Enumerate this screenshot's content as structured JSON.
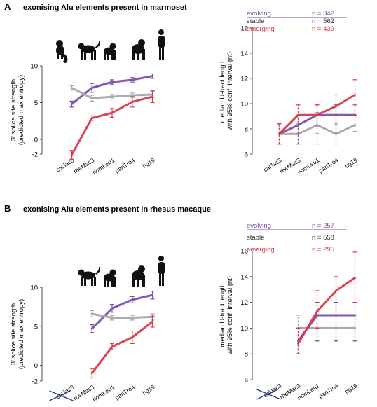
{
  "colors": {
    "evolving": "#7b4fa6",
    "stable": "#a6a6a6",
    "emerging": "#d83a4a",
    "axis": "#222222",
    "strike": "#2a3a8c"
  },
  "panels": [
    {
      "letter": "A",
      "title": "exonising Alu elements present in marmoset",
      "icons": [
        "marmoset-icon",
        "macaque-icon",
        "gibbon-icon",
        "chimpanzee-icon",
        "human-icon"
      ]
    },
    {
      "letter": "B",
      "title": "exonising Alu elements present in rhesus macaque",
      "icons": [
        "macaque-icon",
        "gibbon-icon",
        "chimpanzee-icon",
        "human-icon"
      ]
    }
  ],
  "chart_data": [
    {
      "type": "line",
      "panel": "A-left",
      "categories": [
        "calJac3",
        "rheMac3",
        "nomLeu1",
        "panTro4",
        "hg19"
      ],
      "ylabel": "3' splice site strength\n(predicted max entropy)",
      "ylim": [
        -2,
        10
      ],
      "yticks": [
        -2,
        0,
        5,
        10
      ],
      "series": [
        {
          "key": "evolving",
          "values": [
            4.8,
            7.0,
            7.8,
            8.1,
            8.6
          ],
          "err": [
            0.4,
            0.6,
            0.3,
            0.3,
            0.3
          ]
        },
        {
          "key": "stable",
          "values": [
            7.0,
            5.6,
            5.8,
            6.0,
            6.1
          ],
          "err": [
            0.3,
            0.4,
            0.3,
            0.3,
            0.4
          ]
        },
        {
          "key": "emerging",
          "values": [
            -2.1,
            2.9,
            3.6,
            5.1,
            5.8
          ],
          "err": [
            0.6,
            0.3,
            0.6,
            0.7,
            0.8
          ]
        }
      ],
      "strike_first_tick": false
    },
    {
      "type": "line",
      "panel": "A-right",
      "categories": [
        "calJac3",
        "rheMac3",
        "nomLeu1",
        "panTro4",
        "hg19"
      ],
      "ylabel": "median U-tract length\nwith 95% conf. interval (nt)",
      "ylim": [
        6,
        16
      ],
      "yticks": [
        6,
        8,
        10,
        12,
        14,
        16
      ],
      "legend": [
        {
          "key": "evolving",
          "label": "evolving",
          "n": "n = 342"
        },
        {
          "key": "stable",
          "label": "stable",
          "n": "n = 562"
        },
        {
          "key": "emerging",
          "label": "emerging",
          "n": "n = 439"
        }
      ],
      "series": [
        {
          "key": "stable",
          "values": [
            7.6,
            7.6,
            8.3,
            7.6,
            8.3
          ],
          "err_lo": [
            0.8,
            0.8,
            1.5,
            0.8,
            0.5
          ],
          "err_hi": [
            0.8,
            0.8,
            1.0,
            0.8,
            0.8
          ]
        },
        {
          "key": "evolving",
          "values": [
            7.6,
            8.3,
            9.1,
            9.1,
            9.1
          ],
          "err_lo": [
            0.8,
            1.5,
            0.8,
            1.5,
            0.8
          ],
          "err_hi": [
            0.8,
            0.8,
            0.8,
            0.8,
            0.8
          ]
        },
        {
          "key": "emerging",
          "values": [
            7.6,
            9.1,
            9.1,
            9.8,
            10.7
          ],
          "err_lo": [
            0.8,
            1.5,
            1.5,
            1.5,
            1.6
          ],
          "err_hi": [
            0.8,
            0.8,
            0.8,
            0.9,
            1.2
          ]
        }
      ],
      "strike_first_tick": false
    },
    {
      "type": "line",
      "panel": "B-left",
      "categories": [
        "calJac3",
        "rheMac3",
        "nomLeu1",
        "panTro4",
        "hg19"
      ],
      "ylabel": "3' splice site strength\n(predicted max entropy)",
      "ylim": [
        -2,
        10
      ],
      "yticks": [
        -2,
        0,
        5,
        10
      ],
      "series": [
        {
          "key": "evolving",
          "values": [
            null,
            4.7,
            7.3,
            8.4,
            9.0
          ],
          "err": [
            null,
            0.5,
            0.5,
            0.4,
            0.5
          ]
        },
        {
          "key": "stable",
          "values": [
            null,
            6.6,
            6.1,
            6.1,
            6.2
          ],
          "err": [
            null,
            0.4,
            0.3,
            0.3,
            0.4
          ]
        },
        {
          "key": "emerging",
          "values": [
            null,
            -1.0,
            2.4,
            3.6,
            5.6
          ],
          "err": [
            null,
            0.6,
            0.4,
            0.8,
            0.7
          ]
        }
      ],
      "strike_first_tick": true
    },
    {
      "type": "line",
      "panel": "B-right",
      "categories": [
        "calJac3",
        "rheMac3",
        "nomLeu1",
        "panTro4",
        "hg19"
      ],
      "ylabel": "median U-tract length\nwith 95% conf. interval (nt)",
      "ylim": [
        6,
        16
      ],
      "yticks": [
        6,
        8,
        10,
        12,
        14,
        16
      ],
      "legend": [
        {
          "key": "evolving",
          "label": "evolving",
          "n": "n = 257"
        },
        {
          "key": "stable",
          "label": "stable",
          "n": "n = 558"
        },
        {
          "key": "emerging",
          "label": "emerging",
          "n": "n = 295"
        }
      ],
      "series": [
        {
          "key": "stable",
          "values": [
            null,
            10.0,
            10.0,
            10.0,
            10.0
          ],
          "err_lo": [
            null,
            2.0,
            1.0,
            1.0,
            1.0
          ],
          "err_hi": [
            null,
            1.0,
            1.0,
            1.0,
            1.0
          ]
        },
        {
          "key": "evolving",
          "values": [
            null,
            9.0,
            11.0,
            11.0,
            11.0
          ],
          "err_lo": [
            null,
            1.0,
            2.0,
            2.0,
            2.0
          ],
          "err_hi": [
            null,
            1.0,
            1.0,
            1.0,
            1.0
          ]
        },
        {
          "key": "emerging",
          "values": [
            null,
            8.8,
            11.3,
            12.9,
            13.9
          ],
          "err_lo": [
            null,
            0.8,
            1.3,
            1.9,
            1.9
          ],
          "err_hi": [
            null,
            1.2,
            1.6,
            1.1,
            2.0
          ]
        }
      ],
      "strike_first_tick": true
    }
  ]
}
